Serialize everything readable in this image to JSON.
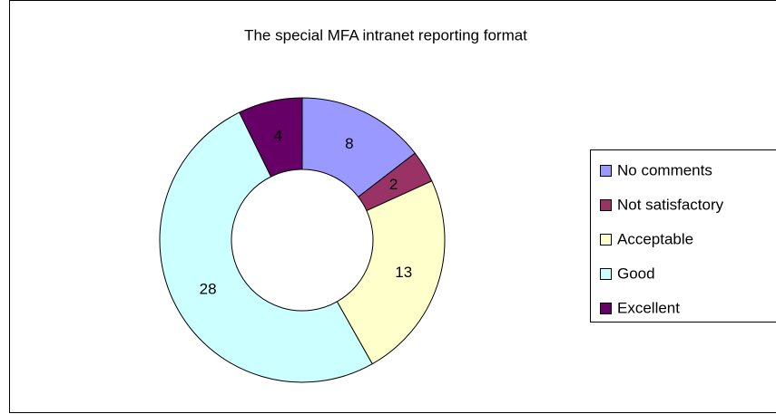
{
  "chart_data": {
    "type": "doughnut",
    "title": "The special MFA intranet reporting format",
    "categories": [
      "No comments",
      "Not satisfactory",
      "Acceptable",
      "Good",
      "Excellent"
    ],
    "values": [
      8,
      2,
      13,
      28,
      4
    ],
    "colors": [
      "#9999ff",
      "#993366",
      "#ffffcc",
      "#ccffff",
      "#660066"
    ],
    "legend": "right"
  }
}
